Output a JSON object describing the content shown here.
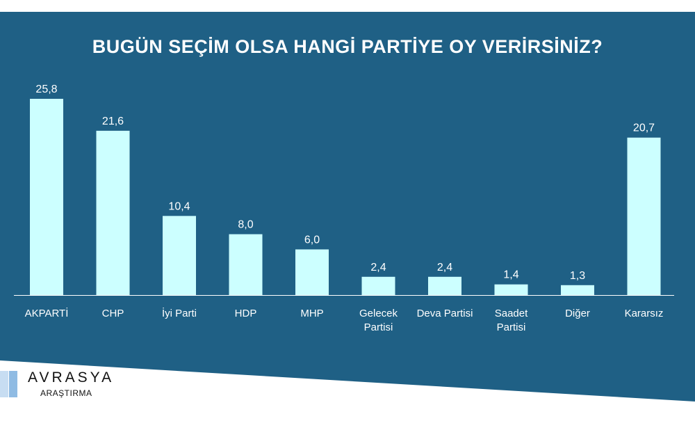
{
  "colors": {
    "background": "#1f6085",
    "bar": "#ccffff",
    "text": "#ffffff",
    "axis": "#ffffff"
  },
  "logo": {
    "name": "AVRASYA",
    "sub": "ARAŞTIRMA"
  },
  "chart_data": {
    "type": "bar",
    "title": "BUGÜN SEÇİM OLSA HANGİ PARTİYE OY VERİRSİNİZ?",
    "xlabel": "",
    "ylabel": "",
    "grid": false,
    "legend": "none",
    "ylim": [
      0,
      28
    ],
    "categories": [
      [
        "AKPARTİ"
      ],
      [
        "CHP"
      ],
      [
        "İyi Parti"
      ],
      [
        "HDP"
      ],
      [
        "MHP"
      ],
      [
        "Gelecek",
        "Partisi"
      ],
      [
        "Deva Partisi"
      ],
      [
        "Saadet",
        "Partisi"
      ],
      [
        "Diğer"
      ],
      [
        "Kararsız"
      ]
    ],
    "values": [
      25.8,
      21.6,
      10.4,
      8.0,
      6.0,
      2.4,
      2.4,
      1.4,
      1.3,
      20.7
    ],
    "value_labels": [
      "25,8",
      "21,6",
      "10,4",
      "8,0",
      "6,0",
      "2,4",
      "2,4",
      "1,4",
      "1,3",
      "20,7"
    ]
  }
}
